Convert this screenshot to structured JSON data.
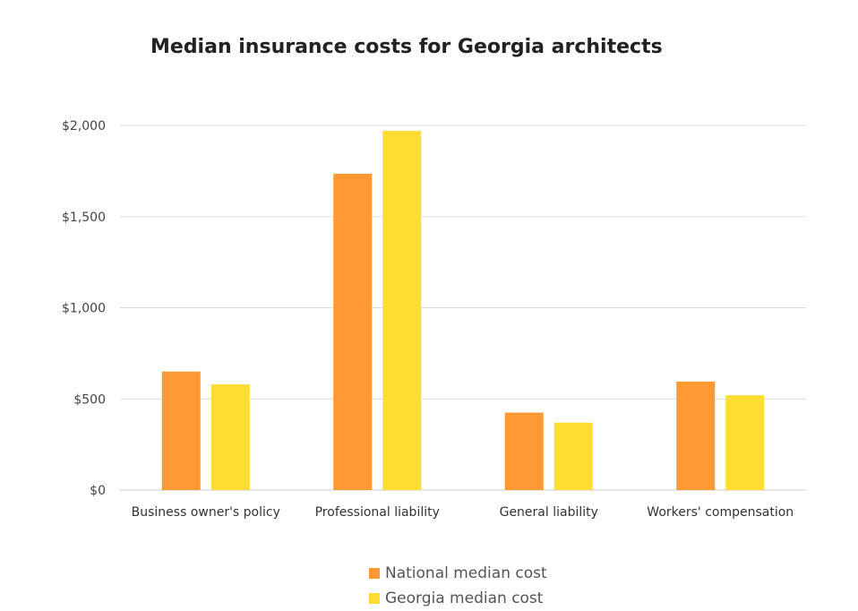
{
  "chart_data": {
    "type": "bar",
    "title": "Median insurance costs for Georgia architects",
    "categories": [
      "Business owner's policy",
      "Professional liability",
      "General liability",
      "Workers' compensation"
    ],
    "series": [
      {
        "name": "National median cost",
        "color": "#FF9933",
        "values": [
          650,
          1735,
          425,
          595
        ]
      },
      {
        "name": "Georgia median cost",
        "color": "#FFDD33",
        "values": [
          580,
          1970,
          370,
          520
        ]
      }
    ],
    "ylim": [
      0,
      2000
    ],
    "yticks": [
      0,
      500,
      1000,
      1500,
      2000
    ],
    "ytick_labels": [
      "$0",
      "$500",
      "$1,000",
      "$1,500",
      "$2,000"
    ],
    "grid": true,
    "legend_position": "bottom"
  }
}
